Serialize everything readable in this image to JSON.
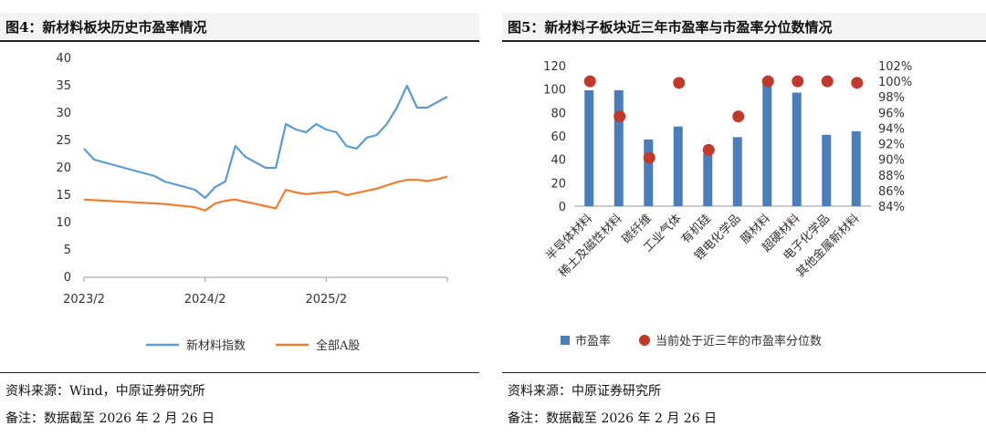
{
  "left": {
    "title": "图4：新材料板块历史市盈率情况",
    "source": "资料来源：Wind，中原证券研究所",
    "note": "备注：数据截至 2026 年 2 月 26 日"
  },
  "right": {
    "title": "图5：新材料子板块近三年市盈率与市盈率分位数情况",
    "source": "资料来源：中原证券研究所",
    "note": "备注：数据截至 2026 年 2 月 26 日"
  },
  "colors": {
    "blue_line": "#5b9bd5",
    "orange_line": "#ed7d31",
    "bar": "#4a7ebb",
    "dot": "#c0392b"
  },
  "chart_data": [
    {
      "type": "line",
      "title": "图4：新材料板块历史市盈率情况",
      "x": [
        "2023/2",
        "2023/3",
        "2023/4",
        "2023/5",
        "2023/6",
        "2023/7",
        "2023/8",
        "2023/9",
        "2023/10",
        "2023/11",
        "2023/12",
        "2024/1",
        "2024/2",
        "2024/3",
        "2024/4",
        "2024/5",
        "2024/6",
        "2024/7",
        "2024/8",
        "2024/9",
        "2024/10",
        "2024/11",
        "2024/12",
        "2025/1",
        "2025/2",
        "2025/3",
        "2025/4",
        "2025/5",
        "2025/6",
        "2025/7",
        "2025/8",
        "2025/9",
        "2025/10",
        "2025/11",
        "2025/12",
        "2026/1",
        "2026/2"
      ],
      "xticks": [
        "2023/2",
        "2024/2",
        "2025/2"
      ],
      "series": [
        {
          "name": "新材料指数",
          "values": [
            23.5,
            21.5,
            21,
            20.5,
            20,
            19.5,
            19,
            18.5,
            17.5,
            17,
            16.5,
            16,
            14.5,
            16.5,
            17.5,
            24,
            22,
            21,
            20,
            20,
            28,
            27,
            26.5,
            28,
            27,
            26.5,
            24,
            23.5,
            25.5,
            26,
            28,
            31,
            35,
            31,
            31,
            32,
            33
          ]
        },
        {
          "name": "全部A股",
          "values": [
            14.2,
            14.1,
            14.0,
            13.9,
            13.8,
            13.7,
            13.6,
            13.5,
            13.4,
            13.2,
            13.0,
            12.8,
            12.2,
            13.5,
            14.0,
            14.2,
            13.8,
            13.4,
            13.0,
            12.6,
            16.0,
            15.5,
            15.2,
            15.4,
            15.5,
            15.7,
            15.0,
            15.4,
            15.8,
            16.2,
            16.8,
            17.4,
            17.8,
            17.8,
            17.6,
            17.9,
            18.4
          ]
        }
      ],
      "yticks": [
        "0",
        "5",
        "10",
        "15",
        "20",
        "25",
        "30",
        "35",
        "40"
      ],
      "ylim": [
        0,
        40
      ],
      "legend": [
        "新材料指数",
        "全部A股"
      ],
      "legend_position": "bottom"
    },
    {
      "type": "bar",
      "title": "图5：新材料子板块近三年市盈率与市盈率分位数情况",
      "categories": [
        "半导体材料",
        "稀土及磁性材料",
        "碳纤维",
        "工业气体",
        "有机硅",
        "锂电化学品",
        "膜材料",
        "超硬材料",
        "电子化学品",
        "其他金属新材料"
      ],
      "series": [
        {
          "name": "市盈率",
          "axis": "left",
          "values": [
            99,
            99,
            57,
            68,
            45,
            59,
            109,
            97,
            61,
            64
          ]
        },
        {
          "name": "当前处于近三年的市盈率分位数",
          "axis": "right",
          "values": [
            100,
            95.5,
            90.2,
            99.8,
            91.2,
            95.5,
            100,
            100,
            100,
            99.8
          ]
        }
      ],
      "ylim": [
        0,
        120
      ],
      "y2lim": [
        84,
        102
      ],
      "yticks": [
        "0",
        "20",
        "40",
        "60",
        "80",
        "100",
        "120"
      ],
      "y2ticks": [
        "84%",
        "86%",
        "88%",
        "90%",
        "92%",
        "94%",
        "96%",
        "98%",
        "100%",
        "102%"
      ],
      "legend": [
        "市盈率",
        "当前处于近三年的市盈率分位数"
      ],
      "legend_position": "bottom"
    }
  ]
}
